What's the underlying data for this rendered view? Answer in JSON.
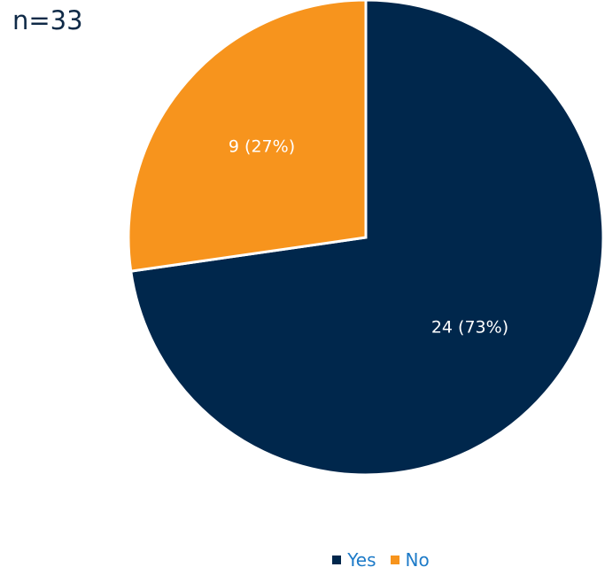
{
  "sample_size": "n=33",
  "chart_data": {
    "type": "pie",
    "title": "",
    "slices": [
      {
        "label": "Yes",
        "value": 24,
        "percent": 73,
        "data_label": "24 (73%)",
        "color": "#00274c"
      },
      {
        "label": "No",
        "value": 9,
        "percent": 27,
        "data_label": "9 (27%)",
        "color": "#f7941d"
      }
    ],
    "start_angle_deg": 0,
    "direction": "clockwise",
    "slice_border_color": "#ffffff",
    "data_label_color": "#ffffff",
    "legend": {
      "placement": "bottom",
      "text_color": "#1e7bc8",
      "entries": [
        "Yes",
        "No"
      ]
    }
  }
}
